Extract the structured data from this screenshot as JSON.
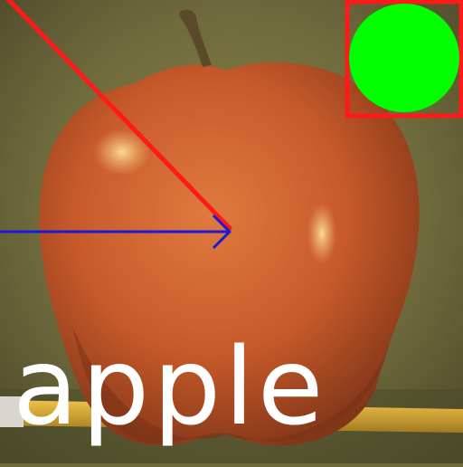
{
  "caption": {
    "text": "apple"
  },
  "colors": {
    "background": "#6f6a3c",
    "apple": "#c85a2a",
    "apple_shadow": "#8d3a1c",
    "highlight": "#f0c070",
    "stem": "#5b4a2a",
    "pencil": "#d8a83a",
    "red_overlay": "#ff1a1a",
    "blue_arrow": "#1a1ad8",
    "green_circle": "#00ff00",
    "caption": "#ffffff"
  },
  "overlays": {
    "red_line": "red-diagonal-line",
    "blue_arrow": "blue-arrow",
    "green_circle": "green-circle",
    "red_box": "red-box"
  }
}
